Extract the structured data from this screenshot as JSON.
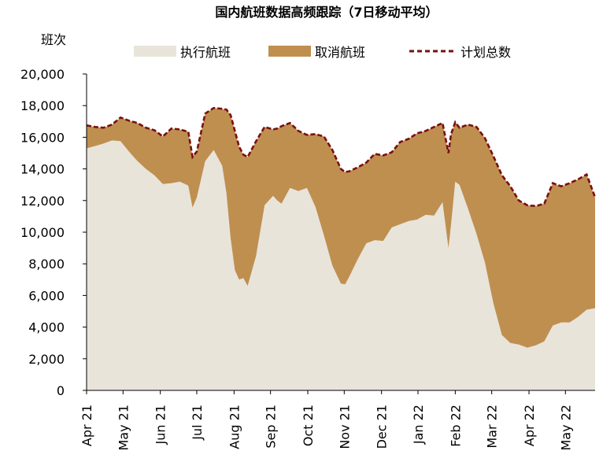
{
  "chart_data": {
    "type": "area",
    "title": "国内航班数据高频跟踪（7日移动平均）",
    "ylabel": "班次",
    "xlabel": "",
    "ylim": [
      0,
      20000
    ],
    "yticks": [
      0,
      2000,
      4000,
      6000,
      8000,
      10000,
      12000,
      14000,
      16000,
      18000,
      20000
    ],
    "ytick_labels": [
      "0",
      "2,000",
      "4,000",
      "6,000",
      "8,000",
      "10,000",
      "12,000",
      "14,000",
      "16,000",
      "18,000",
      "20,000"
    ],
    "xlim": [
      0,
      60
    ],
    "xticks": [
      {
        "label": "Apr 21",
        "x": 0
      },
      {
        "label": "May 21",
        "x": 4.3
      },
      {
        "label": "Jun 21",
        "x": 8.7
      },
      {
        "label": "Jul 21",
        "x": 13.0
      },
      {
        "label": "Aug 21",
        "x": 17.4
      },
      {
        "label": "Sep 21",
        "x": 21.7
      },
      {
        "label": "Oct 21",
        "x": 26.1
      },
      {
        "label": "Nov 21",
        "x": 30.4
      },
      {
        "label": "Dec 21",
        "x": 34.8
      },
      {
        "label": "Jan 22",
        "x": 39.1
      },
      {
        "label": "Feb 22",
        "x": 43.5
      },
      {
        "label": "Mar 22",
        "x": 47.8
      },
      {
        "label": "Apr 22",
        "x": 52.2
      },
      {
        "label": "May 22",
        "x": 56.5
      }
    ],
    "legend": [
      {
        "name": "执行航班",
        "style": "area",
        "color": "#e8e4da"
      },
      {
        "name": "取消航班",
        "style": "area",
        "color": "#bf8f50"
      },
      {
        "name": "计划总数",
        "style": "dashed-line",
        "color": "#7a1010"
      }
    ],
    "legend_position": "top",
    "x": [
      0,
      1,
      2,
      3,
      4,
      5,
      6,
      7,
      8,
      9,
      10,
      11,
      12,
      12.5,
      13,
      14,
      15,
      16,
      16.5,
      17,
      17.5,
      18,
      18.5,
      19,
      20,
      21,
      22,
      22.5,
      23,
      24,
      25,
      26,
      27,
      28,
      29,
      30,
      30.5,
      31,
      32,
      33,
      34,
      35,
      36,
      37,
      38,
      39,
      40,
      41,
      42,
      42.7,
      43,
      43.5,
      44,
      45,
      46,
      47,
      48,
      49,
      50,
      51,
      52,
      53,
      54,
      55,
      56,
      57,
      58,
      59,
      60
    ],
    "series": [
      {
        "name": "计划总数",
        "values": [
          16750,
          16650,
          16600,
          16800,
          17250,
          17050,
          16900,
          16600,
          16450,
          16050,
          16550,
          16500,
          16350,
          14750,
          15100,
          17500,
          17850,
          17800,
          17750,
          17400,
          16400,
          15400,
          14900,
          14750,
          15750,
          16650,
          16500,
          16550,
          16700,
          16900,
          16400,
          16150,
          16200,
          16050,
          15200,
          14000,
          13800,
          13850,
          14100,
          14400,
          14950,
          14850,
          15050,
          15700,
          15900,
          16250,
          16400,
          16650,
          16900,
          15000,
          16200,
          16950,
          16600,
          16800,
          16650,
          15950,
          14800,
          13600,
          12900,
          12000,
          11700,
          11650,
          11800,
          13100,
          12900,
          13100,
          13350,
          13650,
          12200
        ]
      },
      {
        "name": "执行航班",
        "values": [
          15300,
          15450,
          15600,
          15800,
          15750,
          15100,
          14500,
          14000,
          13600,
          13050,
          13100,
          13200,
          12950,
          11550,
          12200,
          14500,
          15200,
          14200,
          12500,
          9600,
          7600,
          7000,
          7100,
          6600,
          8500,
          11700,
          12300,
          12000,
          11800,
          12800,
          12600,
          12800,
          11600,
          9800,
          7900,
          6750,
          6700,
          7200,
          8300,
          9300,
          9500,
          9450,
          10300,
          10500,
          10700,
          10800,
          11100,
          11050,
          11900,
          9000,
          10500,
          13200,
          13000,
          11500,
          9900,
          8100,
          5500,
          3500,
          3000,
          2900,
          2700,
          2850,
          3100,
          4100,
          4300,
          4300,
          4650,
          5100,
          5200
        ]
      }
    ]
  }
}
